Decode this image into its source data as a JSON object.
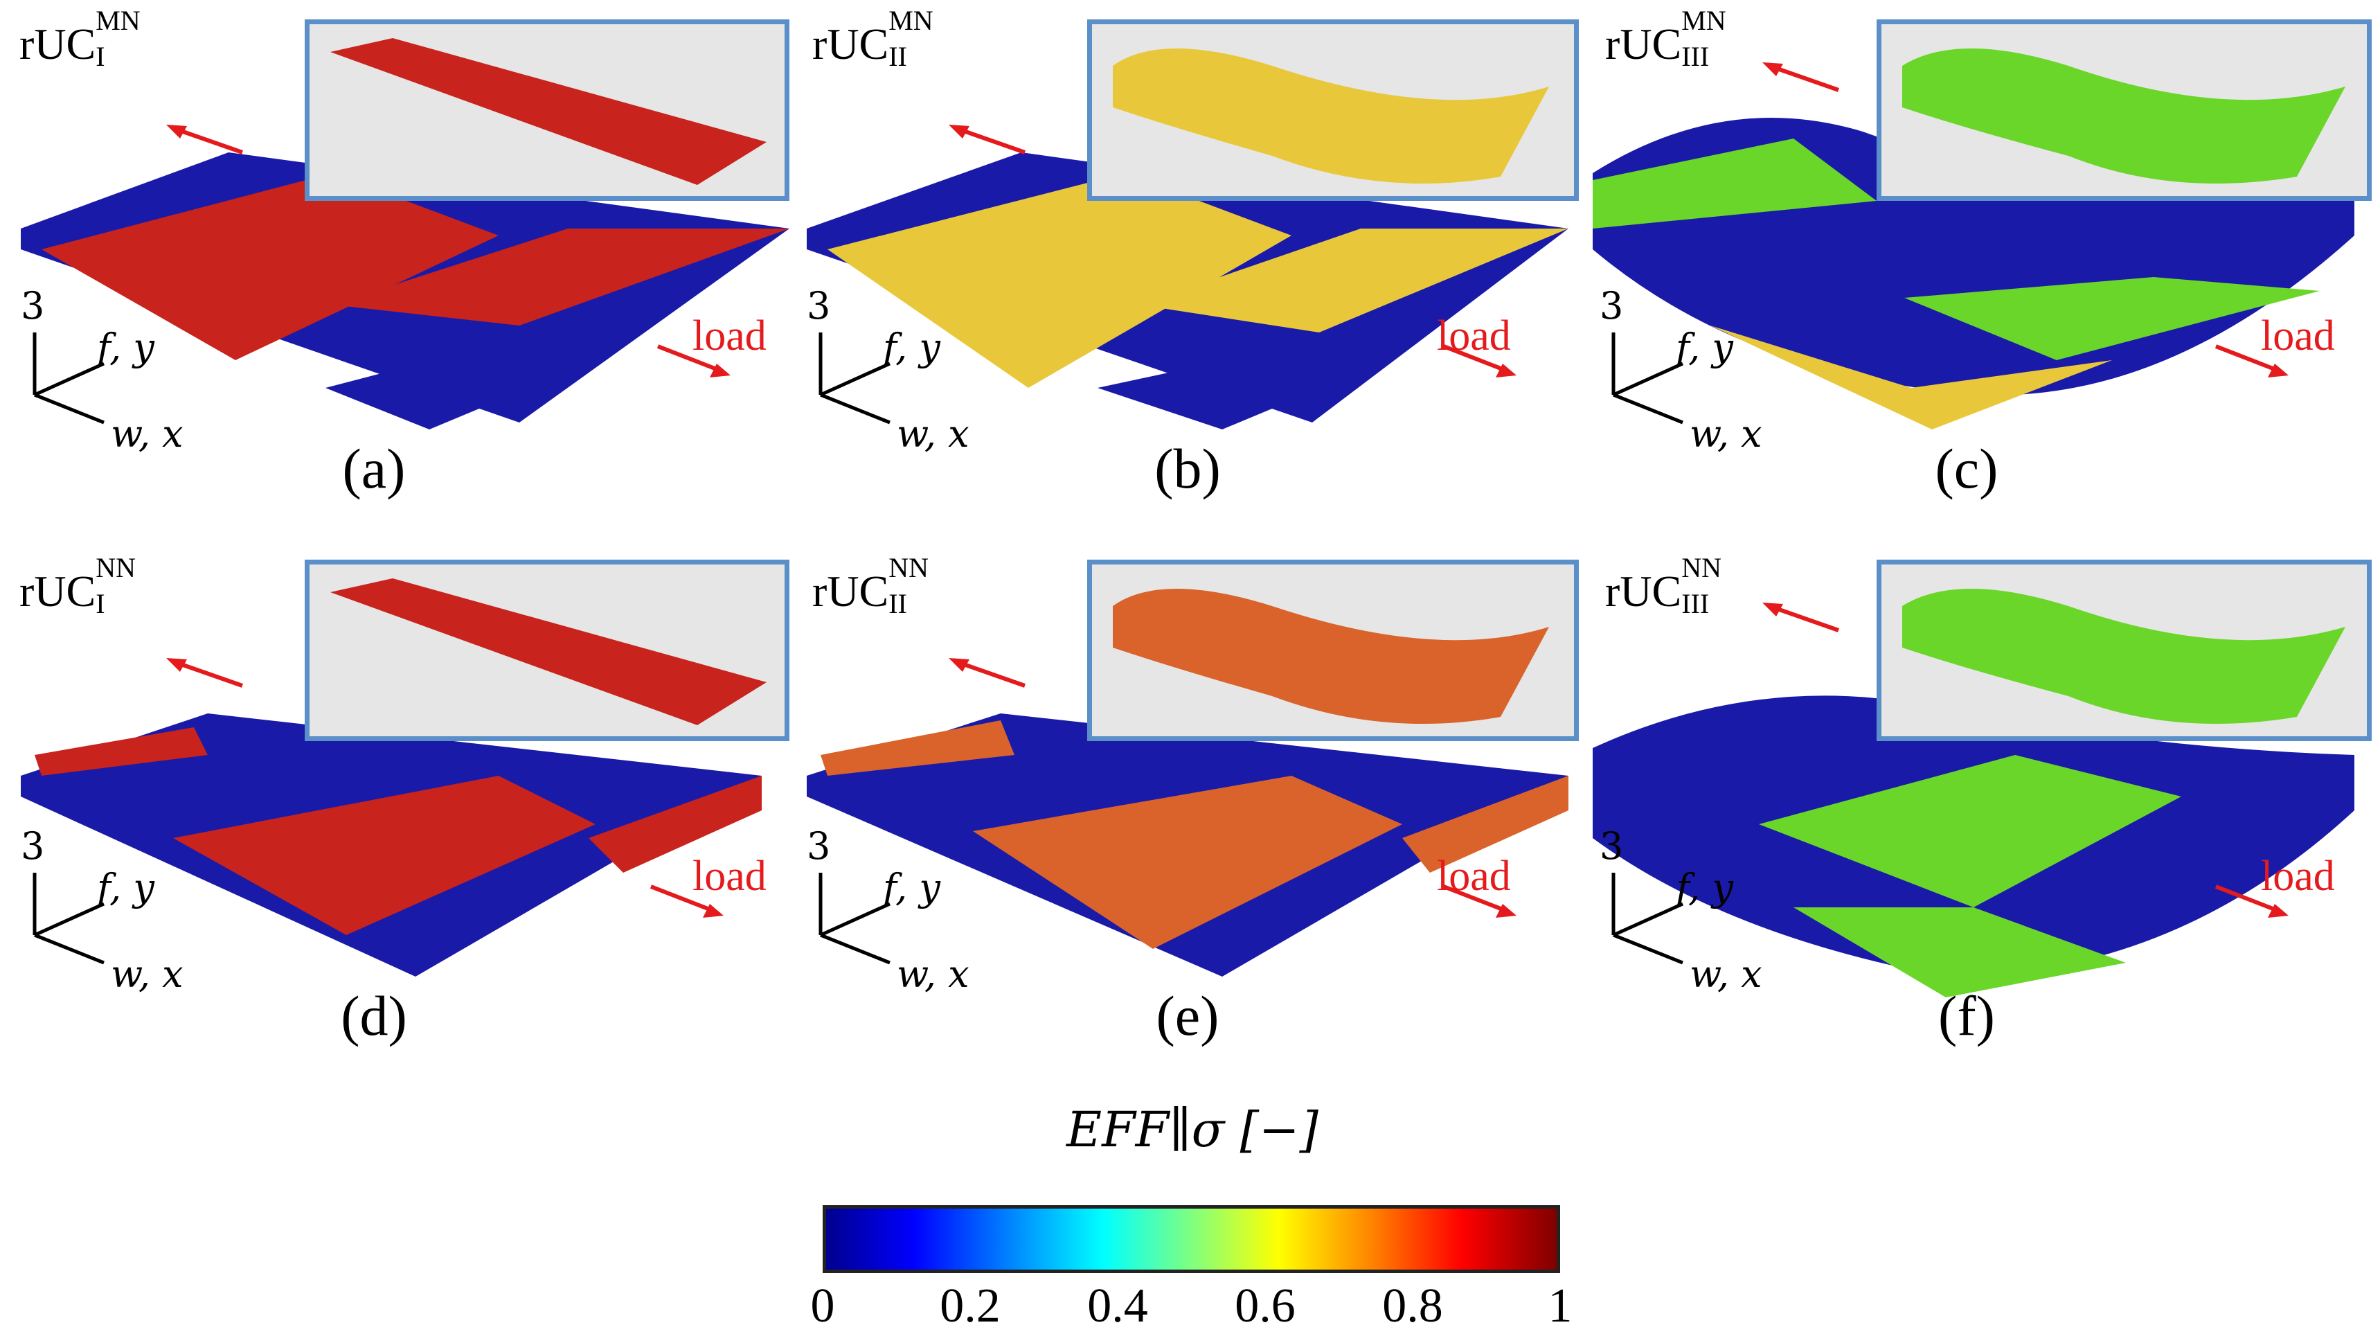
{
  "panels": [
    {
      "id": "a",
      "label": "(a)",
      "tag_main": "rUC",
      "tag_sup": "MN",
      "tag_sub": "I",
      "scheme": "red"
    },
    {
      "id": "b",
      "label": "(b)",
      "tag_main": "rUC",
      "tag_sup": "MN",
      "tag_sub": "II",
      "scheme": "yellow"
    },
    {
      "id": "c",
      "label": "(c)",
      "tag_main": "rUC",
      "tag_sup": "MN",
      "tag_sub": "III",
      "scheme": "green"
    },
    {
      "id": "d",
      "label": "(d)",
      "tag_main": "rUC",
      "tag_sup": "NN",
      "tag_sub": "I",
      "scheme": "red"
    },
    {
      "id": "e",
      "label": "(e)",
      "tag_main": "rUC",
      "tag_sup": "NN",
      "tag_sub": "II",
      "scheme": "orange"
    },
    {
      "id": "f",
      "label": "(f)",
      "tag_main": "rUC",
      "tag_sup": "NN",
      "tag_sub": "III",
      "scheme": "green"
    }
  ],
  "axes": {
    "up": "3",
    "fiber": "f, y",
    "warp": "w, x"
  },
  "load_label": "load",
  "colorbar": {
    "title": "EFF∥σ [−]",
    "ticks": [
      "0",
      "0.2",
      "0.4",
      "0.6",
      "0.8",
      "1"
    ],
    "min": 0,
    "max": 1
  },
  "colors": {
    "tow_blue": "#1a1aa8",
    "red": "#c8231c",
    "yellow": "#e8c83a",
    "green": "#6ad62a",
    "orange": "#d9632a",
    "inset_border": "#5b8fc9",
    "arrow": "#e41a1c"
  }
}
